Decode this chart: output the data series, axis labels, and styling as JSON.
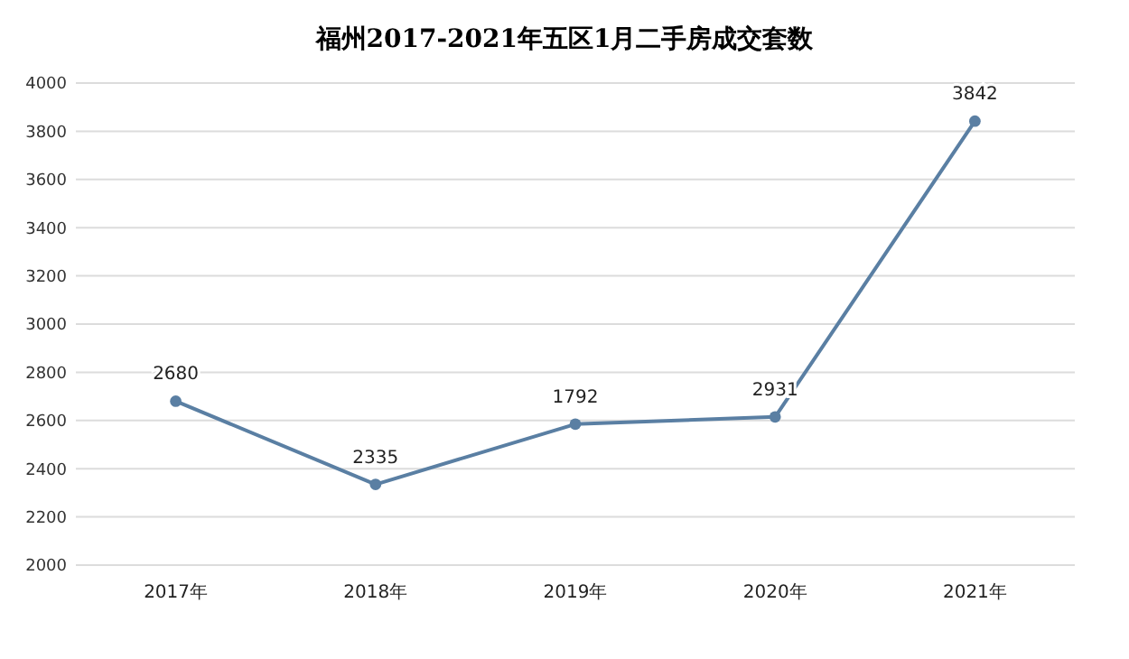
{
  "chart_data": {
    "type": "line",
    "title": "福州2017-2021年五区1月二手房成交套数",
    "categories": [
      "2017年",
      "2018年",
      "2019年",
      "2020年",
      "2021年"
    ],
    "series": [
      {
        "color": "#5a7fa3",
        "values": [
          2680,
          2335,
          2585,
          2615,
          3842
        ]
      }
    ],
    "annotations": [
      {
        "text": "2680",
        "x": "2017年",
        "y": 2680
      },
      {
        "text": "2335",
        "x": "2018年",
        "y": 2335
      },
      {
        "text": "1792",
        "x": "2019年",
        "y": 2585
      },
      {
        "text": "2931",
        "x": "2020年",
        "y": 2615
      },
      {
        "text": "3842",
        "x": "2021年",
        "y": 3842
      }
    ],
    "ylim": [
      2000,
      4000
    ],
    "yticks": [
      2000,
      2200,
      2400,
      2600,
      2800,
      3000,
      3200,
      3400,
      3600,
      3800,
      4000
    ],
    "grid": "y",
    "marker": "circle",
    "line_style": "solid"
  }
}
